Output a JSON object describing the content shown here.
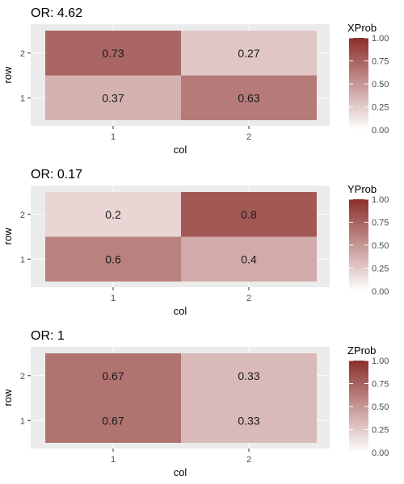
{
  "colors": {
    "low": "#ffffff",
    "high": "#8b2e2a",
    "panel": "#ebebeb",
    "grid": "#ffffff"
  },
  "chart_data": [
    {
      "type": "heatmap",
      "title": "OR: 4.62",
      "xlabel": "col",
      "ylabel": "row",
      "x_categories": [
        "1",
        "2"
      ],
      "y_categories": [
        "1",
        "2"
      ],
      "legend": {
        "title": "XProb",
        "ticks": [
          "0.00",
          "0.25",
          "0.50",
          "0.75",
          "1.00"
        ],
        "position": "right"
      },
      "cells": [
        {
          "col": "1",
          "row": "2",
          "value": 0.73,
          "label": "0.73"
        },
        {
          "col": "2",
          "row": "2",
          "value": 0.27,
          "label": "0.27"
        },
        {
          "col": "1",
          "row": "1",
          "value": 0.37,
          "label": "0.37"
        },
        {
          "col": "2",
          "row": "1",
          "value": 0.63,
          "label": "0.63"
        }
      ]
    },
    {
      "type": "heatmap",
      "title": "OR: 0.17",
      "xlabel": "col",
      "ylabel": "row",
      "x_categories": [
        "1",
        "2"
      ],
      "y_categories": [
        "1",
        "2"
      ],
      "legend": {
        "title": "YProb",
        "ticks": [
          "0.00",
          "0.25",
          "0.50",
          "0.75",
          "1.00"
        ],
        "position": "right"
      },
      "cells": [
        {
          "col": "1",
          "row": "2",
          "value": 0.2,
          "label": "0.2"
        },
        {
          "col": "2",
          "row": "2",
          "value": 0.8,
          "label": "0.8"
        },
        {
          "col": "1",
          "row": "1",
          "value": 0.6,
          "label": "0.6"
        },
        {
          "col": "2",
          "row": "1",
          "value": 0.4,
          "label": "0.4"
        }
      ]
    },
    {
      "type": "heatmap",
      "title": "OR: 1",
      "xlabel": "col",
      "ylabel": "row",
      "x_categories": [
        "1",
        "2"
      ],
      "y_categories": [
        "1",
        "2"
      ],
      "legend": {
        "title": "ZProb",
        "ticks": [
          "0.00",
          "0.25",
          "0.50",
          "0.75",
          "1.00"
        ],
        "position": "right"
      },
      "cells": [
        {
          "col": "1",
          "row": "2",
          "value": 0.67,
          "label": "0.67"
        },
        {
          "col": "2",
          "row": "2",
          "value": 0.33,
          "label": "0.33"
        },
        {
          "col": "1",
          "row": "1",
          "value": 0.67,
          "label": "0.67"
        },
        {
          "col": "2",
          "row": "1",
          "value": 0.33,
          "label": "0.33"
        }
      ]
    }
  ]
}
